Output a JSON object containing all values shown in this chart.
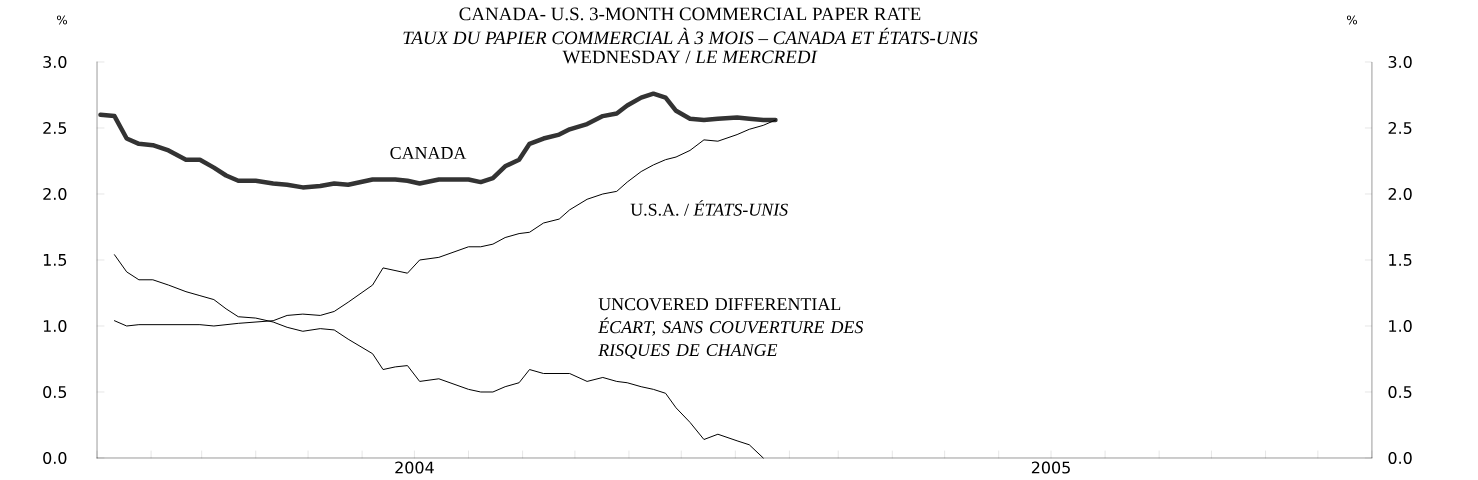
{
  "chart_data": {
    "type": "line",
    "title": "CANADA- U.S. 3-MONTH COMMERCIAL PAPER RATE",
    "subtitle": "TAUX DU PAPIER COMMERCIAL À 3 MOIS – CANADA ET ÉTATS-UNIS",
    "annotations": [
      "WEDNESDAY / *LE MERCREDI*"
    ],
    "ylabel": "%",
    "y2label": "%",
    "x": [
      "2004-01-03",
      "2004-01-11",
      "2004-01-18",
      "2004-01-25",
      "2004-02-02",
      "2004-02-11",
      "2004-02-21",
      "2004-02-29",
      "2004-03-08",
      "2004-03-15",
      "2004-03-22",
      "2004-04-01",
      "2004-04-11",
      "2004-04-19",
      "2004-04-28",
      "2004-05-08",
      "2004-05-16",
      "2004-05-24",
      "2004-06-07",
      "2004-06-13",
      "2004-06-20",
      "2004-06-27",
      "2004-07-04",
      "2004-07-15",
      "2004-08-01",
      "2004-08-08",
      "2004-08-15",
      "2004-08-22",
      "2004-08-30",
      "2004-09-05",
      "2004-09-13",
      "2004-09-22",
      "2004-09-28",
      "2004-10-08",
      "2004-10-17",
      "2004-10-25",
      "2004-10-31",
      "2004-11-08",
      "2004-11-15",
      "2004-11-22",
      "2004-11-28",
      "2004-12-06",
      "2004-12-14",
      "2004-12-22",
      "2005-01-02",
      "2005-01-09",
      "2005-01-17",
      "2005-01-24"
    ],
    "series": [
      {
        "name": "CANADA",
        "color": "#333333",
        "values": [
          2.6,
          2.59,
          2.42,
          2.38,
          2.37,
          2.33,
          2.26,
          2.26,
          2.2,
          2.14,
          2.1,
          2.1,
          2.08,
          2.07,
          2.05,
          2.06,
          2.08,
          2.07,
          2.11,
          2.11,
          2.11,
          2.1,
          2.08,
          2.11,
          2.11,
          2.09,
          2.12,
          2.21,
          2.26,
          2.38,
          2.42,
          2.45,
          2.49,
          2.53,
          2.59,
          2.61,
          2.67,
          2.73,
          2.76,
          2.73,
          2.63,
          2.57,
          2.56,
          2.57,
          2.58,
          2.57,
          2.56,
          2.56
        ]
      },
      {
        "name": "U.S.A. / *ÉTATS-UNIS*",
        "color": "#000000",
        "values": [
          null,
          1.04,
          1.0,
          1.01,
          1.01,
          1.01,
          1.01,
          1.01,
          1.0,
          1.01,
          1.02,
          1.03,
          1.04,
          1.08,
          1.09,
          1.08,
          1.11,
          1.18,
          1.31,
          1.44,
          1.42,
          1.4,
          1.5,
          1.52,
          1.6,
          1.6,
          1.62,
          1.67,
          1.7,
          1.71,
          1.78,
          1.81,
          1.88,
          1.96,
          2.0,
          2.02,
          2.09,
          2.17,
          2.22,
          2.26,
          2.28,
          2.33,
          2.41,
          2.4,
          2.45,
          2.49,
          2.52,
          2.56
        ]
      },
      {
        "name": "UNCOVERED DIFFERENTIAL *ÉCART, SANS COUVERTURE DES RISQUES DE CHANGE*",
        "color": "#000000",
        "values": [
          null,
          1.54,
          1.41,
          1.35,
          1.35,
          1.31,
          1.26,
          1.23,
          1.2,
          1.13,
          1.07,
          1.06,
          1.03,
          0.99,
          0.96,
          0.98,
          0.97,
          0.9,
          0.79,
          0.67,
          0.69,
          0.7,
          0.58,
          0.6,
          0.52,
          0.5,
          0.5,
          0.54,
          0.57,
          0.67,
          0.64,
          0.64,
          0.64,
          0.58,
          0.61,
          0.58,
          0.57,
          0.54,
          0.52,
          0.49,
          0.38,
          0.27,
          0.14,
          0.18,
          0.13,
          0.1,
          0.0,
          null
        ]
      }
    ],
    "xlim": [
      "2004-01-01",
      "2006-01-01"
    ],
    "xticks": [
      {
        "value": "2004-01-01",
        "label": null
      },
      {
        "value": "2004-02-01",
        "label": null
      },
      {
        "value": "2004-03-01",
        "label": null
      },
      {
        "value": "2004-04-01",
        "label": null
      },
      {
        "value": "2004-05-01",
        "label": null
      },
      {
        "value": "2004-06-01",
        "label": null
      },
      {
        "value": "2004-07-01",
        "label": "2004"
      },
      {
        "value": "2004-08-01",
        "label": null
      },
      {
        "value": "2004-09-01",
        "label": null
      },
      {
        "value": "2004-10-01",
        "label": null
      },
      {
        "value": "2004-11-01",
        "label": null
      },
      {
        "value": "2004-12-01",
        "label": null
      },
      {
        "value": "2005-01-01",
        "label": null
      },
      {
        "value": "2005-02-01",
        "label": null
      },
      {
        "value": "2005-03-01",
        "label": null
      },
      {
        "value": "2005-04-01",
        "label": null
      },
      {
        "value": "2005-05-01",
        "label": null
      },
      {
        "value": "2005-06-01",
        "label": null
      },
      {
        "value": "2005-07-01",
        "label": "2005"
      },
      {
        "value": "2005-08-01",
        "label": null
      },
      {
        "value": "2005-09-01",
        "label": null
      },
      {
        "value": "2005-10-01",
        "label": null
      },
      {
        "value": "2005-11-01",
        "label": null
      },
      {
        "value": "2005-12-01",
        "label": null
      },
      {
        "value": "2006-01-01",
        "label": null
      }
    ],
    "ylim": [
      0,
      3
    ],
    "yticks": [
      {
        "value": 0,
        "label": "0.0"
      },
      {
        "value": 0.5,
        "label": "0.5"
      },
      {
        "value": 1,
        "label": "1.0"
      },
      {
        "value": 1.5,
        "label": "1.5"
      },
      {
        "value": 2,
        "label": "2.0"
      },
      {
        "value": 2.5,
        "label": "2.5"
      },
      {
        "value": 3,
        "label": "3.0"
      }
    ],
    "y2lim": [
      0,
      3
    ],
    "y2ticks": [
      {
        "value": 0,
        "label": "0.0"
      },
      {
        "value": 0.5,
        "label": "0.5"
      },
      {
        "value": 1,
        "label": "1.0"
      },
      {
        "value": 1.5,
        "label": "1.5"
      },
      {
        "value": 2,
        "label": "2.0"
      },
      {
        "value": 2.5,
        "label": "2.5"
      },
      {
        "value": 3,
        "label": "3.0"
      }
    ]
  }
}
